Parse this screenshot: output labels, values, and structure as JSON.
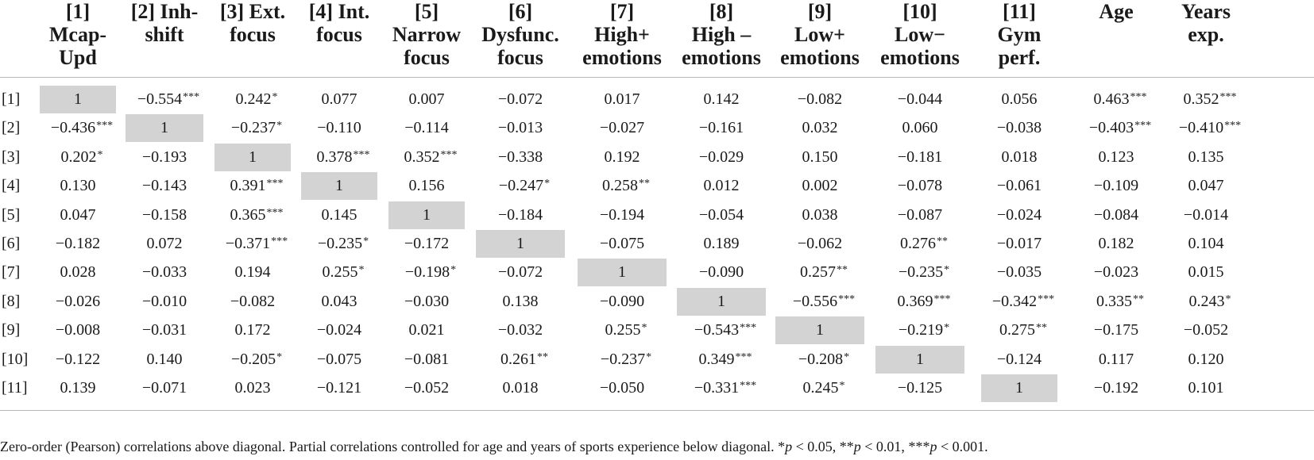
{
  "headers": [
    {
      "id": "1",
      "lines": [
        "[1]",
        "Mcap-",
        "Upd"
      ]
    },
    {
      "id": "2",
      "lines": [
        "[2] Inh-",
        "shift"
      ]
    },
    {
      "id": "3",
      "lines": [
        "[3] Ext.",
        "focus"
      ]
    },
    {
      "id": "4",
      "lines": [
        "[4] Int.",
        "focus"
      ]
    },
    {
      "id": "5",
      "lines": [
        "[5]",
        "Narrow",
        "focus"
      ]
    },
    {
      "id": "6",
      "lines": [
        "[6]",
        "Dysfunc.",
        "focus"
      ]
    },
    {
      "id": "7",
      "lines": [
        "[7]",
        "High+",
        "emotions"
      ]
    },
    {
      "id": "8",
      "lines": [
        "[8]",
        "High –",
        "emotions"
      ]
    },
    {
      "id": "9",
      "lines": [
        "[9]",
        "Low+",
        "emotions"
      ]
    },
    {
      "id": "10",
      "lines": [
        "[10]",
        "Low−",
        "emotions"
      ]
    },
    {
      "id": "11",
      "lines": [
        "[11]",
        "Gym",
        "perf."
      ]
    },
    {
      "id": "age",
      "lines": [
        "Age"
      ]
    },
    {
      "id": "years",
      "lines": [
        "Years",
        "exp."
      ]
    }
  ],
  "rows": [
    {
      "label": "[1]",
      "cells": [
        "1",
        "−0.554***",
        "0.242*",
        "0.077",
        "0.007",
        "−0.072",
        "0.017",
        "0.142",
        "−0.082",
        "−0.044",
        "0.056",
        "0.463***",
        "0.352***"
      ]
    },
    {
      "label": "[2]",
      "cells": [
        "−0.436***",
        "1",
        "−0.237*",
        "−0.110",
        "−0.114",
        "−0.013",
        "−0.027",
        "−0.161",
        "0.032",
        "0.060",
        "−0.038",
        "−0.403***",
        "−0.410***"
      ]
    },
    {
      "label": "[3]",
      "cells": [
        "0.202*",
        "−0.193",
        "1",
        "0.378***",
        "0.352***",
        "−0.338",
        "0.192",
        "−0.029",
        "0.150",
        "−0.181",
        "0.018",
        "0.123",
        "0.135"
      ]
    },
    {
      "label": "[4]",
      "cells": [
        "0.130",
        "−0.143",
        "0.391***",
        "1",
        "0.156",
        "−0.247*",
        "0.258**",
        "0.012",
        "0.002",
        "−0.078",
        "−0.061",
        "−0.109",
        "0.047"
      ]
    },
    {
      "label": "[5]",
      "cells": [
        "0.047",
        "−0.158",
        "0.365***",
        "0.145",
        "1",
        "−0.184",
        "−0.194",
        "−0.054",
        "0.038",
        "−0.087",
        "−0.024",
        "−0.084",
        "−0.014"
      ]
    },
    {
      "label": "[6]",
      "cells": [
        "−0.182",
        "0.072",
        "−0.371***",
        "−0.235*",
        "−0.172",
        "1",
        "−0.075",
        "0.189",
        "−0.062",
        "0.276**",
        "−0.017",
        "0.182",
        "0.104"
      ]
    },
    {
      "label": "[7]",
      "cells": [
        "0.028",
        "−0.033",
        "0.194",
        "0.255*",
        "−0.198*",
        "−0.072",
        "1",
        "−0.090",
        "0.257**",
        "−0.235*",
        "−0.035",
        "−0.023",
        "0.015"
      ]
    },
    {
      "label": "[8]",
      "cells": [
        "−0.026",
        "−0.010",
        "−0.082",
        "0.043",
        "−0.030",
        "0.138",
        "−0.090",
        "1",
        "−0.556***",
        "0.369***",
        "−0.342***",
        "0.335**",
        "0.243*"
      ]
    },
    {
      "label": "[9]",
      "cells": [
        "−0.008",
        "−0.031",
        "0.172",
        "−0.024",
        "0.021",
        "−0.032",
        "0.255*",
        "−0.543***",
        "1",
        "−0.219*",
        "0.275**",
        "−0.175",
        "−0.052"
      ]
    },
    {
      "label": "[10]",
      "cells": [
        "−0.122",
        "0.140",
        "−0.205*",
        "−0.075",
        "−0.081",
        "0.261**",
        "−0.237*",
        "0.349***",
        "−0.208*",
        "1",
        "−0.124",
        "0.117",
        "0.120"
      ]
    },
    {
      "label": "[11]",
      "cells": [
        "0.139",
        "−0.071",
        "0.023",
        "−0.121",
        "−0.052",
        "0.018",
        "−0.050",
        "−0.331***",
        "0.245*",
        "−0.125",
        "1",
        "−0.192",
        "0.101"
      ]
    }
  ],
  "footnote": {
    "main": "Zero-order (Pearson) correlations above diagonal. Partial correlations controlled for age and years of sports experience below diagonal. ",
    "sig1_prefix": "*",
    "sig1_p": "p",
    "sig1_rest": " < 0.05, ",
    "sig2_prefix": "**",
    "sig2_p": "p",
    "sig2_rest": " < 0.01, ",
    "sig3_prefix": "***",
    "sig3_p": "p",
    "sig3_rest": " < 0.001."
  },
  "colors": {
    "diagonal_fill": "#d3d3d3",
    "rule": "#b8b8b8"
  }
}
